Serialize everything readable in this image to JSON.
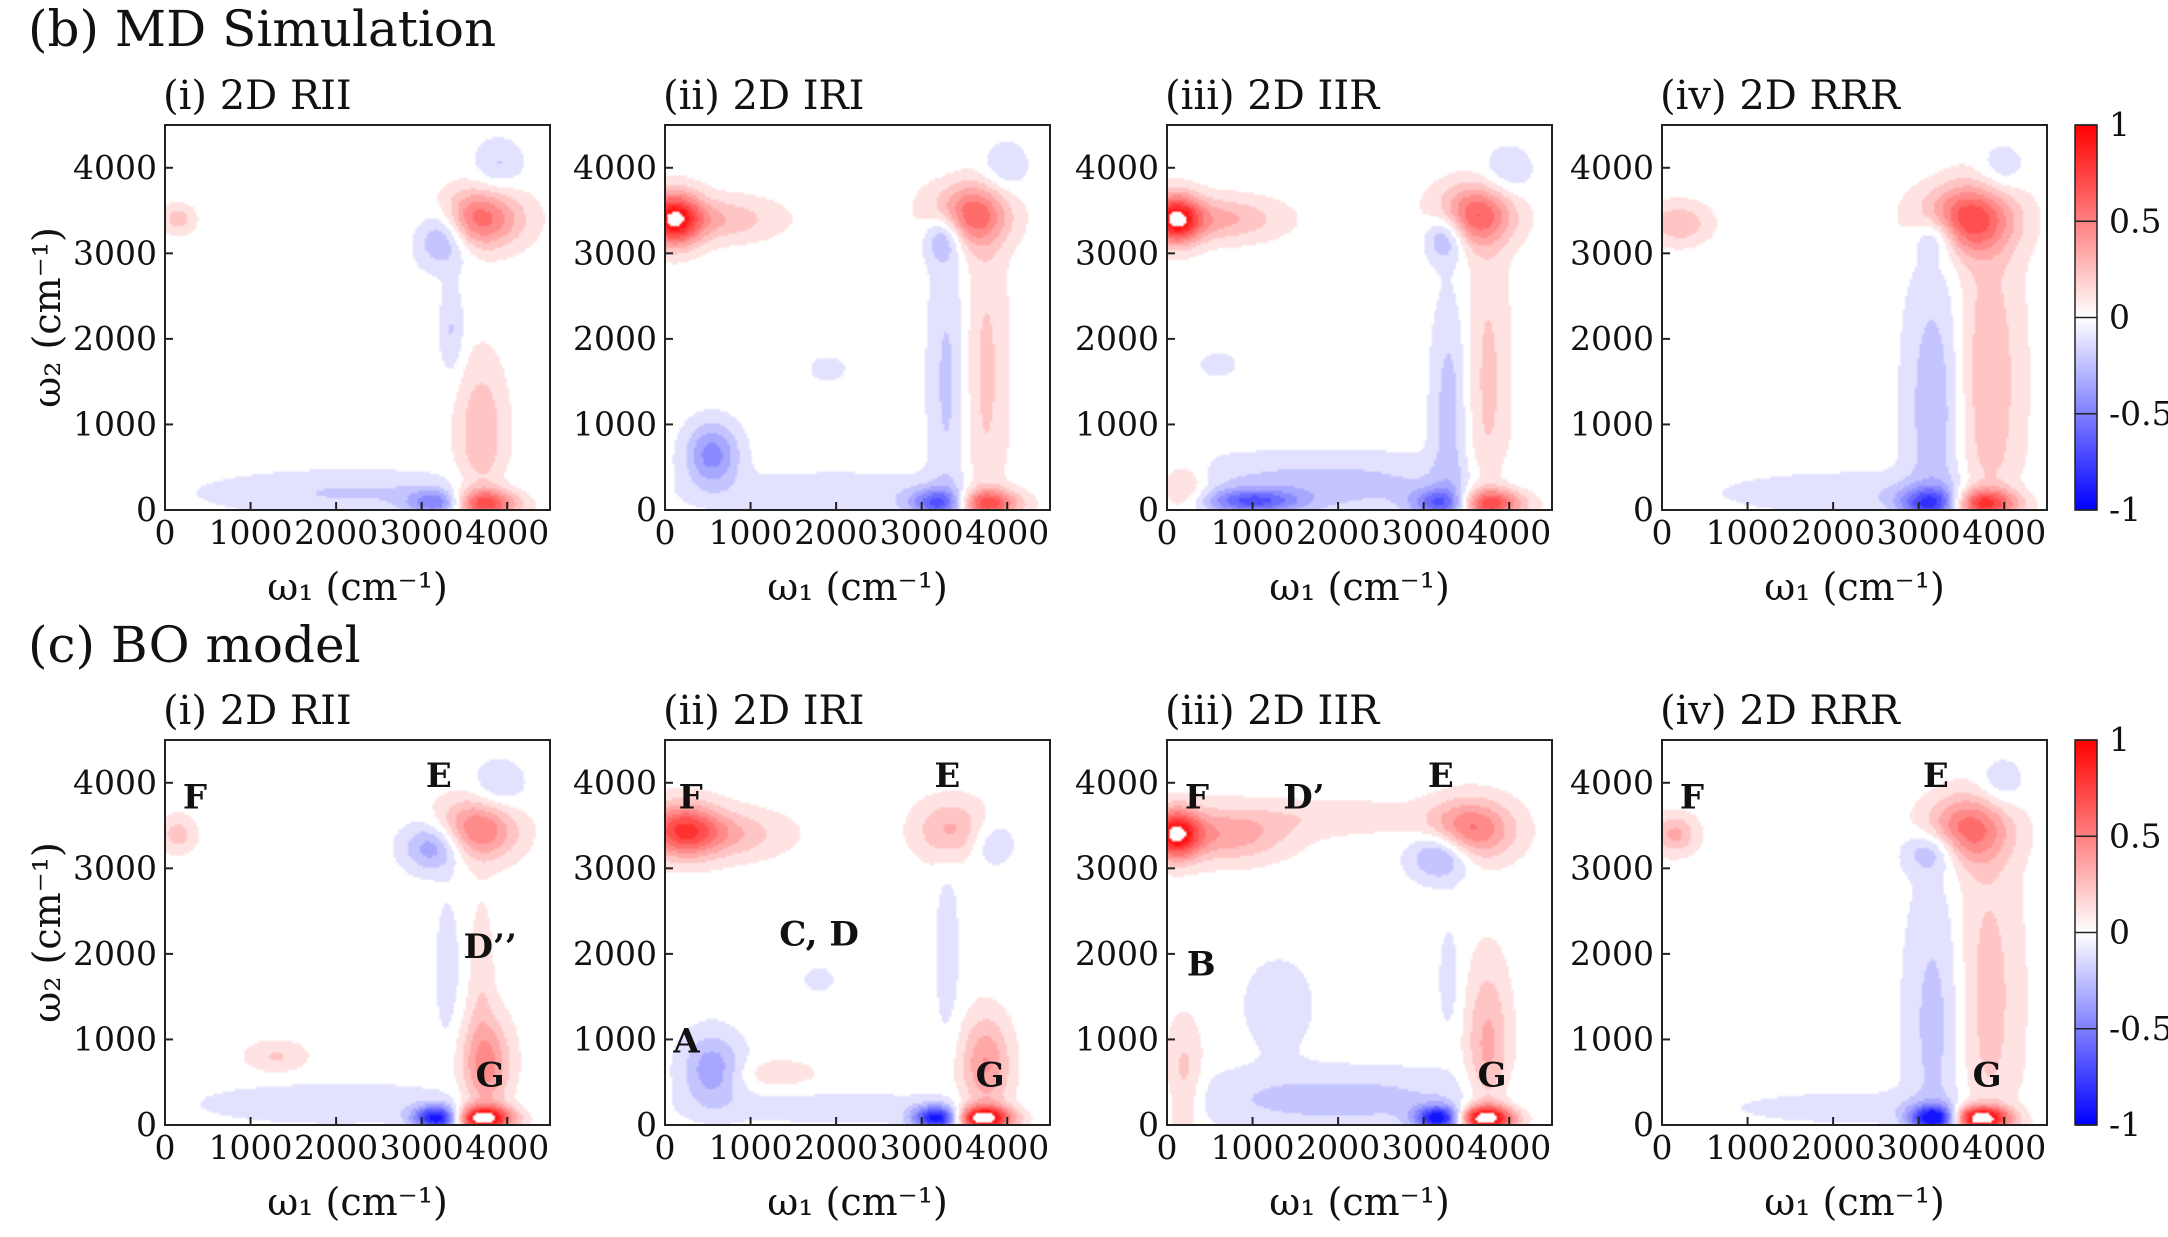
{
  "sections": [
    {
      "label": "(b) MD Simulation"
    },
    {
      "label": "(c) BO model"
    }
  ],
  "chart_data": [
    {
      "type": "heatmap",
      "section": 0,
      "title": "(i) 2D RII",
      "xlabel": "ω₁ (cm⁻¹)",
      "ylabel": "ω₂ (cm⁻¹)",
      "xlim": [
        0,
        4500
      ],
      "ylim": [
        0,
        4500
      ],
      "xticks": [
        0,
        1000,
        2000,
        3000,
        4000
      ],
      "yticks": [
        0,
        1000,
        2000,
        3000,
        4000
      ],
      "zlim": [
        -1,
        1
      ],
      "features": [
        {
          "x": 3600,
          "y": 3400,
          "sx": 380,
          "sy": 240,
          "a": 0.7
        },
        {
          "x": 3250,
          "y": 3250,
          "sx": 220,
          "sy": 260,
          "a": -0.55
        },
        {
          "x": 3900,
          "y": 4050,
          "sx": 200,
          "sy": 200,
          "a": -0.2
        },
        {
          "x": 150,
          "y": 3400,
          "sx": 140,
          "sy": 120,
          "a": 0.25
        },
        {
          "x": 3650,
          "y": 80,
          "sx": 320,
          "sy": 120,
          "a": 0.9
        },
        {
          "x": 3250,
          "y": 80,
          "sx": 260,
          "sy": 110,
          "a": -0.75
        },
        {
          "x": 2200,
          "y": 200,
          "sx": 1200,
          "sy": 180,
          "a": -0.2
        },
        {
          "x": 3700,
          "y": 900,
          "sx": 200,
          "sy": 600,
          "a": 0.3
        },
        {
          "x": 3350,
          "y": 2100,
          "sx": 100,
          "sy": 350,
          "a": -0.2
        }
      ],
      "labels": []
    },
    {
      "type": "heatmap",
      "section": 0,
      "title": "(ii) 2D IRI",
      "xlabel": "ω₁ (cm⁻¹)",
      "ylabel": "",
      "xlim": [
        0,
        4500
      ],
      "ylim": [
        0,
        4500
      ],
      "xticks": [
        0,
        1000,
        2000,
        3000,
        4000
      ],
      "yticks": [
        0,
        1000,
        2000,
        3000,
        4000
      ],
      "zlim": [
        -1,
        1
      ],
      "features": [
        {
          "x": 100,
          "y": 3400,
          "sx": 220,
          "sy": 220,
          "a": 0.95
        },
        {
          "x": 600,
          "y": 3400,
          "sx": 500,
          "sy": 180,
          "a": 0.3
        },
        {
          "x": 3550,
          "y": 3450,
          "sx": 320,
          "sy": 260,
          "a": 0.65
        },
        {
          "x": 3250,
          "y": 3200,
          "sx": 160,
          "sy": 200,
          "a": -0.4
        },
        {
          "x": 3950,
          "y": 4000,
          "sx": 200,
          "sy": 220,
          "a": -0.2
        },
        {
          "x": 550,
          "y": 650,
          "sx": 220,
          "sy": 260,
          "a": -0.5
        },
        {
          "x": 3700,
          "y": 80,
          "sx": 300,
          "sy": 120,
          "a": 0.85
        },
        {
          "x": 3250,
          "y": 80,
          "sx": 260,
          "sy": 120,
          "a": -0.8
        },
        {
          "x": 3300,
          "y": 1500,
          "sx": 160,
          "sy": 1200,
          "a": -0.22
        },
        {
          "x": 3750,
          "y": 1600,
          "sx": 180,
          "sy": 1300,
          "a": 0.22
        },
        {
          "x": 2000,
          "y": 200,
          "sx": 1200,
          "sy": 180,
          "a": -0.15
        },
        {
          "x": 1900,
          "y": 1650,
          "sx": 150,
          "sy": 100,
          "a": -0.15
        }
      ],
      "labels": []
    },
    {
      "type": "heatmap",
      "section": 0,
      "title": "(iii) 2D IIR",
      "xlabel": "ω₁ (cm⁻¹)",
      "ylabel": "",
      "xlim": [
        0,
        4500
      ],
      "ylim": [
        0,
        4500
      ],
      "xticks": [
        0,
        1000,
        2000,
        3000,
        4000
      ],
      "yticks": [
        0,
        1000,
        2000,
        3000,
        4000
      ],
      "zlim": [
        -1,
        1
      ],
      "features": [
        {
          "x": 100,
          "y": 3400,
          "sx": 200,
          "sy": 200,
          "a": 0.95
        },
        {
          "x": 600,
          "y": 3400,
          "sx": 500,
          "sy": 180,
          "a": 0.35
        },
        {
          "x": 3600,
          "y": 3450,
          "sx": 320,
          "sy": 250,
          "a": 0.65
        },
        {
          "x": 3250,
          "y": 3200,
          "sx": 160,
          "sy": 200,
          "a": -0.4
        },
        {
          "x": 3950,
          "y": 3950,
          "sx": 220,
          "sy": 220,
          "a": -0.2
        },
        {
          "x": 3700,
          "y": 80,
          "sx": 320,
          "sy": 120,
          "a": 0.85
        },
        {
          "x": 3250,
          "y": 80,
          "sx": 260,
          "sy": 120,
          "a": -0.8
        },
        {
          "x": 1800,
          "y": 300,
          "sx": 1300,
          "sy": 250,
          "a": -0.25
        },
        {
          "x": 1000,
          "y": 100,
          "sx": 400,
          "sy": 100,
          "a": -0.6
        },
        {
          "x": 3300,
          "y": 1200,
          "sx": 150,
          "sy": 900,
          "a": -0.25
        },
        {
          "x": 3750,
          "y": 1500,
          "sx": 180,
          "sy": 1300,
          "a": 0.22
        },
        {
          "x": 200,
          "y": 250,
          "sx": 200,
          "sy": 200,
          "a": 0.3
        },
        {
          "x": 600,
          "y": 1700,
          "sx": 150,
          "sy": 100,
          "a": -0.15
        }
      ],
      "labels": []
    },
    {
      "type": "heatmap",
      "section": 0,
      "title": "(iv) 2D RRR",
      "xlabel": "ω₁ (cm⁻¹)",
      "ylabel": "",
      "xlim": [
        0,
        4500
      ],
      "ylim": [
        0,
        4500
      ],
      "xticks": [
        0,
        1000,
        2000,
        3000,
        4000
      ],
      "yticks": [
        0,
        1000,
        2000,
        3000,
        4000
      ],
      "zlim": [
        -1,
        1
      ],
      "features": [
        {
          "x": 200,
          "y": 3350,
          "sx": 250,
          "sy": 170,
          "a": 0.3
        },
        {
          "x": 3550,
          "y": 3400,
          "sx": 380,
          "sy": 280,
          "a": 0.75
        },
        {
          "x": 3200,
          "y": 3200,
          "sx": 180,
          "sy": 180,
          "a": -0.35
        },
        {
          "x": 3950,
          "y": 4000,
          "sx": 200,
          "sy": 220,
          "a": -0.2
        },
        {
          "x": 3700,
          "y": 80,
          "sx": 300,
          "sy": 120,
          "a": 0.9
        },
        {
          "x": 3200,
          "y": 80,
          "sx": 280,
          "sy": 120,
          "a": -0.8
        },
        {
          "x": 3200,
          "y": 1200,
          "sx": 250,
          "sy": 1200,
          "a": -0.3
        },
        {
          "x": 3800,
          "y": 1500,
          "sx": 280,
          "sy": 1400,
          "a": 0.3
        },
        {
          "x": 2300,
          "y": 200,
          "sx": 1200,
          "sy": 180,
          "a": -0.15
        }
      ],
      "labels": []
    },
    {
      "type": "heatmap",
      "section": 1,
      "title": "(i) 2D RII",
      "xlabel": "ω₁ (cm⁻¹)",
      "ylabel": "ω₂ (cm⁻¹)",
      "xlim": [
        0,
        4500
      ],
      "ylim": [
        0,
        4500
      ],
      "xticks": [
        0,
        1000,
        2000,
        3000,
        4000
      ],
      "yticks": [
        0,
        1000,
        2000,
        3000,
        4000
      ],
      "zlim": [
        -1,
        1
      ],
      "features": [
        {
          "x": 3650,
          "y": 3450,
          "sx": 320,
          "sy": 250,
          "a": 0.6
        },
        {
          "x": 3150,
          "y": 3250,
          "sx": 250,
          "sy": 200,
          "a": -0.45
        },
        {
          "x": 3900,
          "y": 3950,
          "sx": 220,
          "sy": 220,
          "a": -0.2
        },
        {
          "x": 150,
          "y": 3400,
          "sx": 150,
          "sy": 150,
          "a": 0.25
        },
        {
          "x": 3700,
          "y": 80,
          "sx": 250,
          "sy": 100,
          "a": 1.2
        },
        {
          "x": 3200,
          "y": 80,
          "sx": 200,
          "sy": 100,
          "a": -1.1
        },
        {
          "x": 3750,
          "y": 700,
          "sx": 200,
          "sy": 400,
          "a": 0.5
        },
        {
          "x": 1300,
          "y": 800,
          "sx": 250,
          "sy": 130,
          "a": 0.2
        },
        {
          "x": 2000,
          "y": 250,
          "sx": 1200,
          "sy": 180,
          "a": -0.15
        },
        {
          "x": 3300,
          "y": 1800,
          "sx": 100,
          "sy": 600,
          "a": -0.15
        },
        {
          "x": 3700,
          "y": 1800,
          "sx": 100,
          "sy": 600,
          "a": 0.15
        }
      ],
      "labels": [
        {
          "text": "F",
          "x": 350,
          "y": 3700
        },
        {
          "text": "E",
          "x": 3200,
          "y": 3950
        },
        {
          "text": "D’’",
          "x": 3800,
          "y": 1950
        },
        {
          "text": "G",
          "x": 3800,
          "y": 450
        }
      ]
    },
    {
      "type": "heatmap",
      "section": 1,
      "title": "(ii) 2D IRI",
      "xlabel": "ω₁ (cm⁻¹)",
      "ylabel": "",
      "xlim": [
        0,
        4500
      ],
      "ylim": [
        0,
        4500
      ],
      "xticks": [
        0,
        1000,
        2000,
        3000,
        4000
      ],
      "yticks": [
        0,
        1000,
        2000,
        3000,
        4000
      ],
      "zlim": [
        -1,
        1
      ],
      "features": [
        {
          "x": 200,
          "y": 3450,
          "sx": 300,
          "sy": 220,
          "a": 0.7
        },
        {
          "x": 700,
          "y": 3400,
          "sx": 500,
          "sy": 200,
          "a": 0.3
        },
        {
          "x": 3350,
          "y": 3450,
          "sx": 300,
          "sy": 250,
          "a": 0.35
        },
        {
          "x": 3800,
          "y": 3300,
          "sx": 200,
          "sy": 200,
          "a": -0.2
        },
        {
          "x": 550,
          "y": 650,
          "sx": 250,
          "sy": 300,
          "a": -0.4
        },
        {
          "x": 1300,
          "y": 600,
          "sx": 350,
          "sy": 120,
          "a": 0.15
        },
        {
          "x": 3700,
          "y": 80,
          "sx": 250,
          "sy": 100,
          "a": 1.2
        },
        {
          "x": 3200,
          "y": 80,
          "sx": 200,
          "sy": 100,
          "a": -1.1
        },
        {
          "x": 3750,
          "y": 700,
          "sx": 200,
          "sy": 400,
          "a": 0.45
        },
        {
          "x": 2000,
          "y": 200,
          "sx": 1200,
          "sy": 150,
          "a": -0.12
        },
        {
          "x": 3300,
          "y": 2000,
          "sx": 100,
          "sy": 700,
          "a": -0.15
        },
        {
          "x": 1800,
          "y": 1700,
          "sx": 120,
          "sy": 100,
          "a": -0.15
        }
      ],
      "labels": [
        {
          "text": "F",
          "x": 300,
          "y": 3700
        },
        {
          "text": "E",
          "x": 3300,
          "y": 3950
        },
        {
          "text": "C, D",
          "x": 1800,
          "y": 2100
        },
        {
          "text": "A",
          "x": 250,
          "y": 850
        },
        {
          "text": "G",
          "x": 3800,
          "y": 450
        }
      ]
    },
    {
      "type": "heatmap",
      "section": 1,
      "title": "(iii) 2D IIR",
      "xlabel": "ω₁ (cm⁻¹)",
      "ylabel": "",
      "xlim": [
        0,
        4500
      ],
      "ylim": [
        0,
        4500
      ],
      "xticks": [
        0,
        1000,
        2000,
        3000,
        4000
      ],
      "yticks": [
        0,
        1000,
        2000,
        3000,
        4000
      ],
      "zlim": [
        -1,
        1
      ],
      "features": [
        {
          "x": 100,
          "y": 3400,
          "sx": 200,
          "sy": 200,
          "a": 0.95
        },
        {
          "x": 700,
          "y": 3400,
          "sx": 500,
          "sy": 220,
          "a": 0.4
        },
        {
          "x": 3550,
          "y": 3450,
          "sx": 350,
          "sy": 250,
          "a": 0.6
        },
        {
          "x": 3200,
          "y": 3150,
          "sx": 250,
          "sy": 200,
          "a": -0.45
        },
        {
          "x": 2000,
          "y": 3600,
          "sx": 700,
          "sy": 150,
          "a": 0.15
        },
        {
          "x": 3700,
          "y": 80,
          "sx": 250,
          "sy": 100,
          "a": 1.2
        },
        {
          "x": 3200,
          "y": 80,
          "sx": 200,
          "sy": 100,
          "a": -1.1
        },
        {
          "x": 2000,
          "y": 300,
          "sx": 1300,
          "sy": 250,
          "a": -0.25
        },
        {
          "x": 200,
          "y": 500,
          "sx": 150,
          "sy": 500,
          "a": 0.25
        },
        {
          "x": 3750,
          "y": 900,
          "sx": 180,
          "sy": 700,
          "a": 0.35
        },
        {
          "x": 1300,
          "y": 1400,
          "sx": 300,
          "sy": 400,
          "a": -0.15
        },
        {
          "x": 3300,
          "y": 1700,
          "sx": 100,
          "sy": 500,
          "a": -0.12
        }
      ],
      "labels": [
        {
          "text": "F",
          "x": 350,
          "y": 3700
        },
        {
          "text": "D’",
          "x": 1600,
          "y": 3700
        },
        {
          "text": "E",
          "x": 3200,
          "y": 3950
        },
        {
          "text": "B",
          "x": 400,
          "y": 1750
        },
        {
          "text": "G",
          "x": 3800,
          "y": 450
        }
      ]
    },
    {
      "type": "heatmap",
      "section": 1,
      "title": "(iv) 2D RRR",
      "xlabel": "ω₁ (cm⁻¹)",
      "ylabel": "",
      "xlim": [
        0,
        4500
      ],
      "ylim": [
        0,
        4500
      ],
      "xticks": [
        0,
        1000,
        2000,
        3000,
        4000
      ],
      "yticks": [
        0,
        1000,
        2000,
        3000,
        4000
      ],
      "zlim": [
        -1,
        1
      ],
      "features": [
        {
          "x": 150,
          "y": 3400,
          "sx": 180,
          "sy": 160,
          "a": 0.35
        },
        {
          "x": 3550,
          "y": 3450,
          "sx": 350,
          "sy": 280,
          "a": 0.6
        },
        {
          "x": 3150,
          "y": 3200,
          "sx": 220,
          "sy": 180,
          "a": -0.35
        },
        {
          "x": 3950,
          "y": 4000,
          "sx": 200,
          "sy": 220,
          "a": -0.2
        },
        {
          "x": 3700,
          "y": 80,
          "sx": 250,
          "sy": 100,
          "a": 1.2
        },
        {
          "x": 3200,
          "y": 80,
          "sx": 200,
          "sy": 100,
          "a": -1.1
        },
        {
          "x": 3200,
          "y": 1200,
          "sx": 250,
          "sy": 1200,
          "a": -0.25
        },
        {
          "x": 3800,
          "y": 1500,
          "sx": 280,
          "sy": 1400,
          "a": 0.25
        },
        {
          "x": 2300,
          "y": 200,
          "sx": 1200,
          "sy": 150,
          "a": -0.12
        }
      ],
      "labels": [
        {
          "text": "F",
          "x": 350,
          "y": 3700
        },
        {
          "text": "E",
          "x": 3200,
          "y": 3950
        },
        {
          "text": "G",
          "x": 3800,
          "y": 450
        }
      ]
    }
  ],
  "colorbars": [
    {
      "section": 0,
      "ticks": [
        "1",
        "0.5",
        "0",
        "-0.5",
        "-1"
      ],
      "values": [
        1,
        0.5,
        0,
        -0.5,
        -1
      ]
    },
    {
      "section": 1,
      "ticks": [
        "1",
        "0.5",
        "0",
        "-0.5",
        "-1"
      ],
      "values": [
        1,
        0.5,
        0,
        -0.5,
        -1
      ]
    }
  ],
  "colors": {
    "positive": "#ff0000",
    "zero": "#ffffff",
    "negative": "#0000ff",
    "contour": "#333333"
  }
}
